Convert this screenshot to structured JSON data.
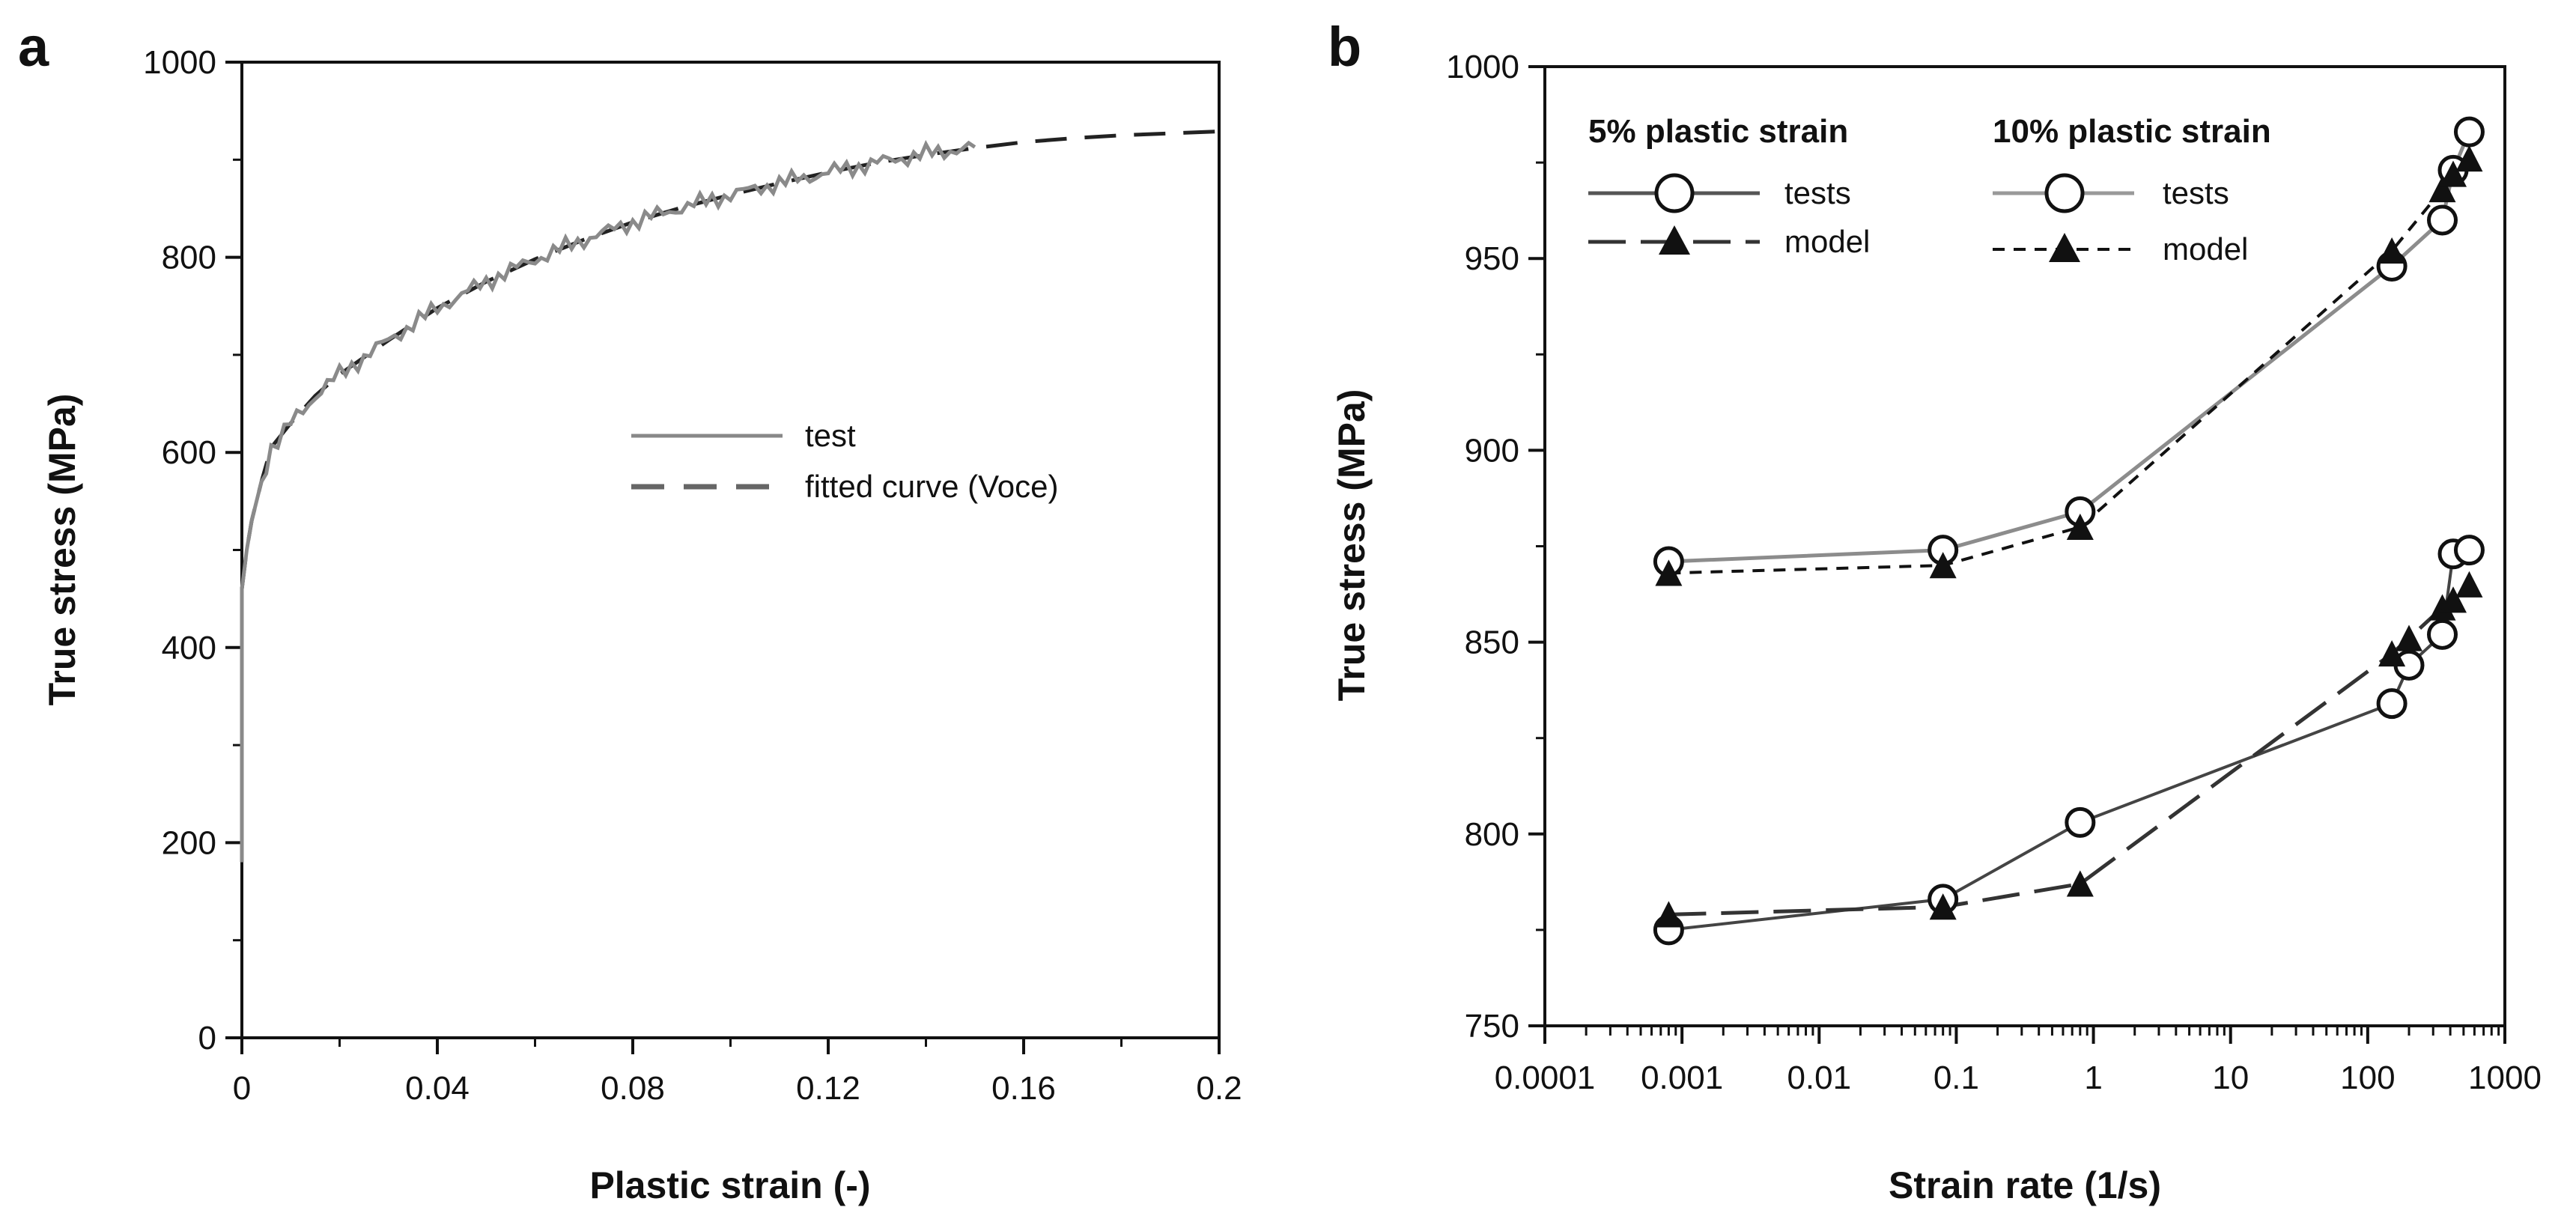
{
  "chart_data": [
    {
      "panel": "a",
      "type": "line",
      "xlabel": "Plastic strain (-)",
      "ylabel": "True stress (MPa)",
      "xlim": [
        0,
        0.2
      ],
      "ylim": [
        0,
        1000
      ],
      "xticks": [
        "0",
        "0.04",
        "0.08",
        "0.12",
        "0.16",
        "0.2"
      ],
      "yticks": [
        "0",
        "200",
        "400",
        "600",
        "800",
        "1000"
      ],
      "legend": [
        "test",
        "fitted curve (Voce)"
      ],
      "series": [
        {
          "name": "test",
          "style": "solid-gray",
          "x": [
            0,
            0,
            0.001,
            0.002,
            0.004,
            0.006,
            0.01,
            0.015,
            0.02,
            0.03,
            0.04,
            0.05,
            0.06,
            0.07,
            0.08,
            0.09,
            0.1,
            0.11,
            0.12,
            0.13,
            0.14,
            0.15
          ],
          "y": [
            180,
            460,
            500,
            530,
            570,
            605,
            630,
            658,
            680,
            715,
            748,
            775,
            798,
            818,
            836,
            851,
            864,
            876,
            887,
            897,
            906,
            913
          ]
        },
        {
          "name": "fitted curve (Voce)",
          "style": "dashed",
          "x": [
            0,
            0.001,
            0.002,
            0.004,
            0.006,
            0.01,
            0.015,
            0.02,
            0.03,
            0.04,
            0.05,
            0.06,
            0.07,
            0.08,
            0.09,
            0.1,
            0.11,
            0.12,
            0.13,
            0.14,
            0.15,
            0.16,
            0.17,
            0.18,
            0.19,
            0.2
          ],
          "y": [
            460,
            500,
            530,
            570,
            605,
            630,
            658,
            680,
            715,
            748,
            775,
            798,
            818,
            836,
            851,
            864,
            876,
            887,
            897,
            905,
            912,
            918,
            922,
            925,
            927,
            929
          ]
        }
      ]
    },
    {
      "panel": "b",
      "type": "line",
      "xscale": "log",
      "xlabel": "Strain rate (1/s)",
      "ylabel": "True stress (MPa)",
      "xlim": [
        0.0001,
        1000
      ],
      "ylim": [
        750,
        1000
      ],
      "xticks": [
        "0.0001",
        "0.001",
        "0.01",
        "0.1",
        "1",
        "10",
        "100",
        "1000"
      ],
      "yticks": [
        "750",
        "800",
        "850",
        "900",
        "950",
        "1000"
      ],
      "legend_groups": [
        {
          "title": "5% plastic strain",
          "entries": [
            "tests",
            "model"
          ]
        },
        {
          "title": "10% plastic strain",
          "entries": [
            "tests",
            "model"
          ]
        }
      ],
      "series": [
        {
          "name": "5% plastic strain - tests",
          "marker": "circle",
          "line": "solid-dark",
          "x": [
            0.0008,
            0.08,
            0.8,
            150,
            200,
            350,
            420,
            550
          ],
          "y": [
            775,
            783,
            803,
            834,
            844,
            852,
            873,
            874
          ]
        },
        {
          "name": "5% plastic strain - model",
          "marker": "triangle",
          "line": "longdash-dark",
          "x": [
            0.0008,
            0.08,
            0.8,
            150,
            200,
            350,
            420,
            550
          ],
          "y": [
            779,
            781,
            787,
            847,
            851,
            859,
            861,
            865
          ]
        },
        {
          "name": "10% plastic strain - tests",
          "marker": "circle",
          "line": "solid-gray",
          "x": [
            0.0008,
            0.08,
            0.8,
            150,
            350,
            420,
            550
          ],
          "y": [
            871,
            874,
            884,
            948,
            960,
            973,
            983
          ]
        },
        {
          "name": "10% plastic strain - model",
          "marker": "triangle",
          "line": "shortdash-black",
          "x": [
            0.0008,
            0.08,
            0.8,
            150,
            350,
            420,
            550
          ],
          "y": [
            868,
            870,
            880,
            952,
            968,
            972,
            976
          ]
        }
      ]
    }
  ]
}
